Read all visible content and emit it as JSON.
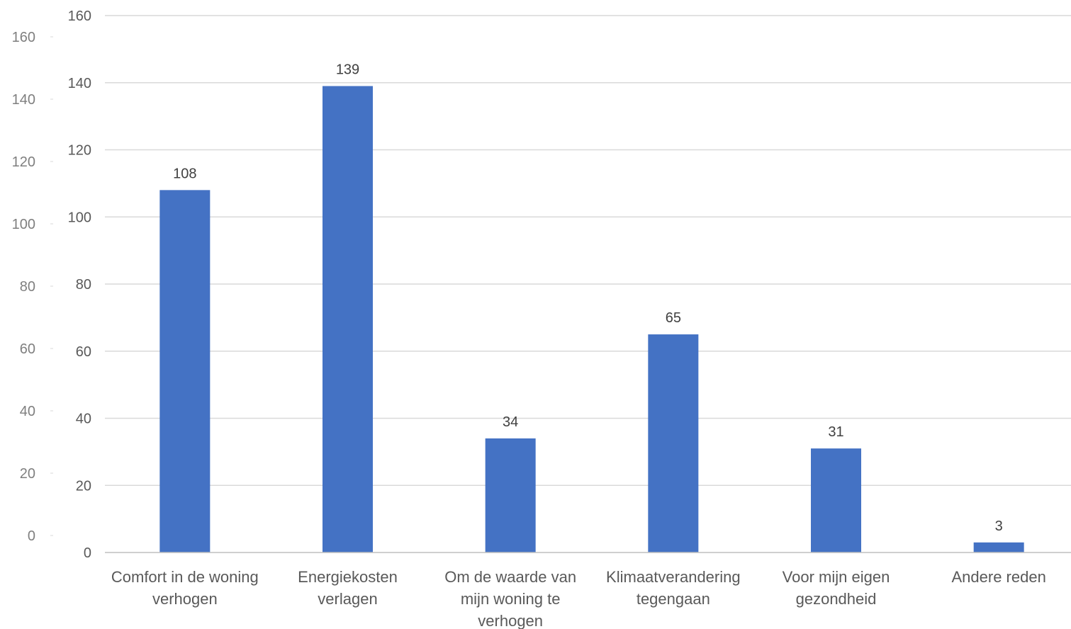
{
  "chart_data": {
    "type": "bar",
    "categories": [
      [
        "Comfort in de woning",
        "verhogen"
      ],
      [
        "Energiekosten",
        "verlagen"
      ],
      [
        "Om de waarde van",
        "mijn woning te",
        "verhogen"
      ],
      [
        "Klimaatverandering",
        "tegengaan"
      ],
      [
        "Voor mijn eigen",
        "gezondheid"
      ],
      [
        "Andere reden"
      ]
    ],
    "values": [
      108,
      139,
      34,
      65,
      31,
      3
    ],
    "data_labels": [
      "108",
      "139",
      "34",
      "65",
      "31",
      "3"
    ],
    "ylim": [
      0,
      160
    ],
    "y_ticks": [
      0,
      20,
      40,
      60,
      80,
      100,
      120,
      140,
      160
    ],
    "ghost_y_ticks": [
      0,
      20,
      40,
      60,
      80,
      100,
      120,
      140,
      160
    ],
    "title": "",
    "xlabel": "",
    "ylabel": "",
    "grid": true,
    "legend": "none",
    "bar_color": "#4472c4",
    "grid_color": "#d9d9d9"
  }
}
